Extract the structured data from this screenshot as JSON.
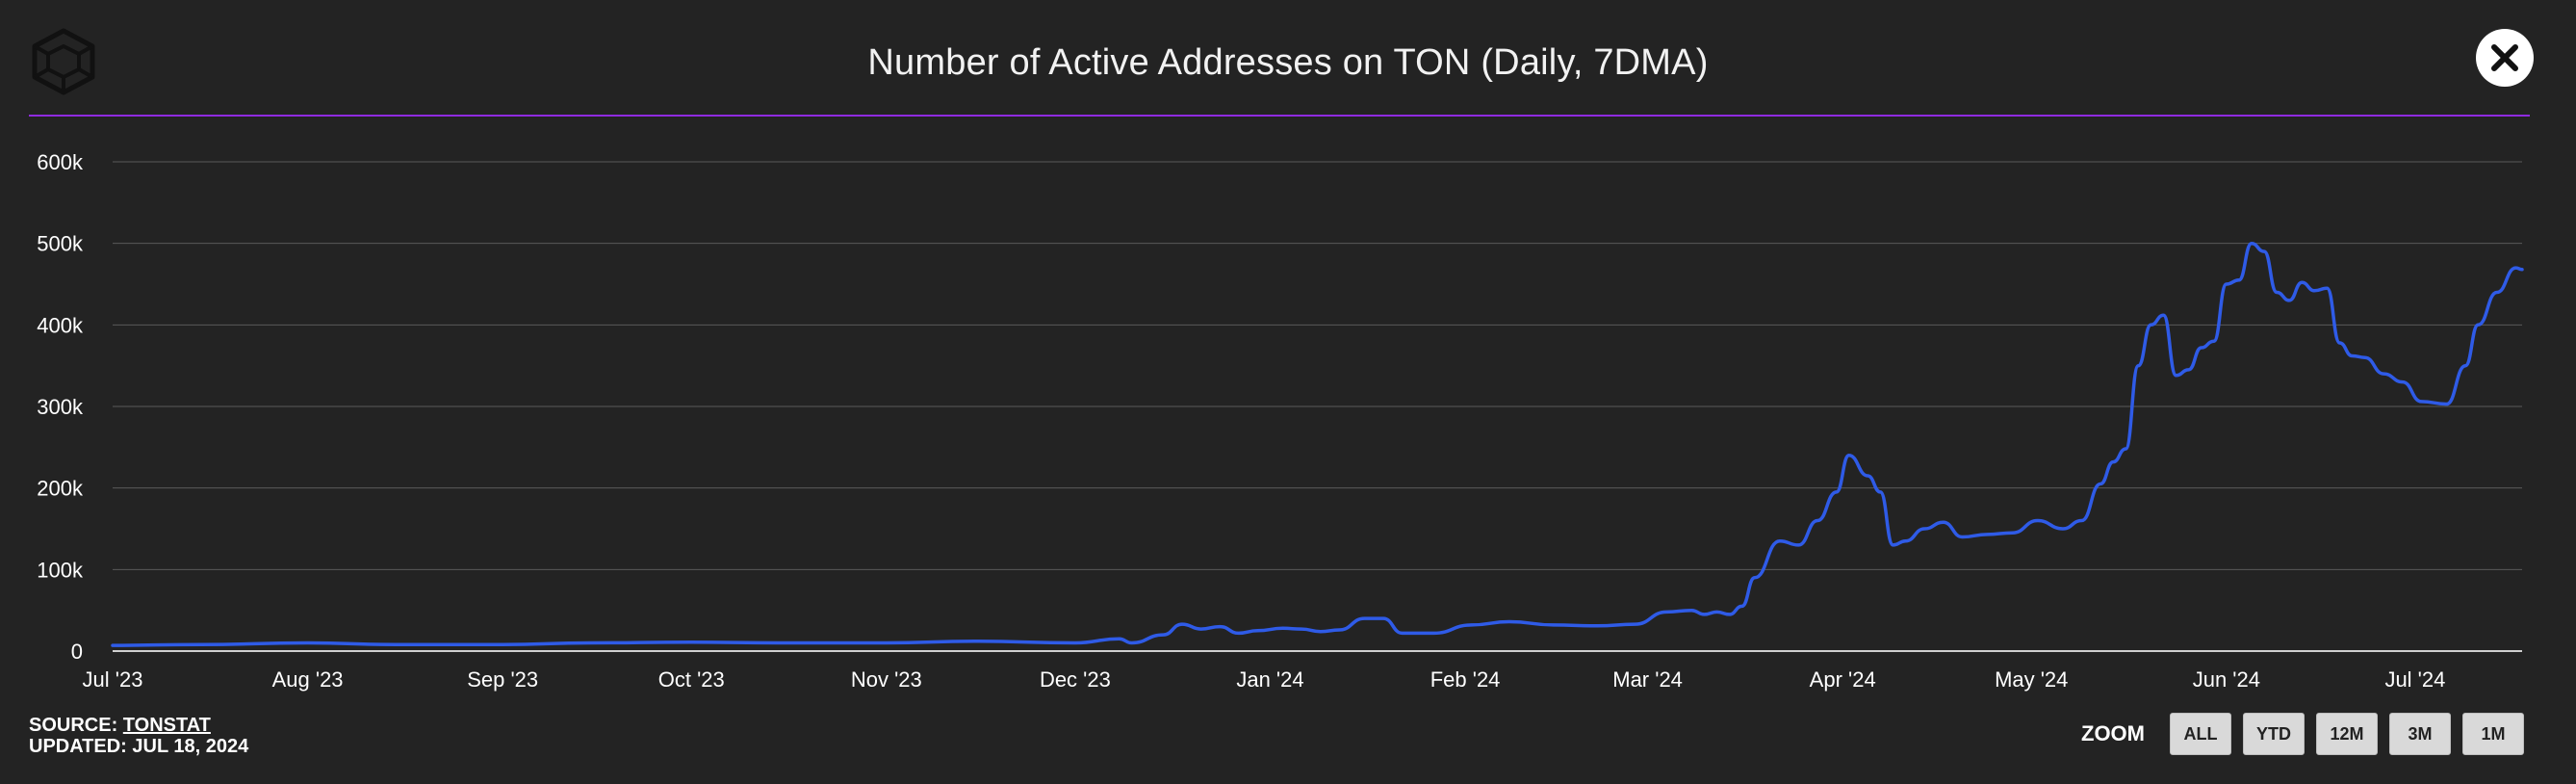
{
  "header": {
    "title": "Number of Active Addresses on TON (Daily, 7DMA)",
    "logo_icon": "cube-logo-icon",
    "close_icon": "close-icon"
  },
  "colors": {
    "background": "#232323",
    "accent_rule": "#8f2be0",
    "line": "#2f5be7",
    "grid": "#5a5a5a"
  },
  "chart_data": {
    "type": "line",
    "title": "Number of Active Addresses on TON (Daily, 7DMA)",
    "xlabel": "",
    "ylabel": "",
    "grid": true,
    "legend": "none",
    "ylim": [
      0,
      600000
    ],
    "xlim": [
      "2023-07-01",
      "2024-07-18"
    ],
    "y_ticks": [
      0,
      100000,
      200000,
      300000,
      400000,
      500000,
      600000
    ],
    "y_tick_labels": [
      "0",
      "100k",
      "200k",
      "300k",
      "400k",
      "500k",
      "600k"
    ],
    "x_ticks": [
      "2023-07-01",
      "2023-08-01",
      "2023-09-01",
      "2023-10-01",
      "2023-11-01",
      "2023-12-01",
      "2024-01-01",
      "2024-02-01",
      "2024-03-01",
      "2024-04-01",
      "2024-05-01",
      "2024-06-01",
      "2024-07-01"
    ],
    "x_tick_labels": [
      "Jul '23",
      "Aug '23",
      "Sep '23",
      "Oct '23",
      "Nov '23",
      "Dec '23",
      "Jan '24",
      "Feb '24",
      "Mar '24",
      "Apr '24",
      "May '24",
      "Jun '24",
      "Jul '24"
    ],
    "series": [
      {
        "x": [
          "2023-07-01",
          "2023-07-15",
          "2023-08-01",
          "2023-08-15",
          "2023-09-01",
          "2023-09-15",
          "2023-10-01",
          "2023-10-15",
          "2023-11-01",
          "2023-11-15",
          "2023-12-01",
          "2023-12-08",
          "2023-12-10",
          "2023-12-15",
          "2023-12-18",
          "2023-12-21",
          "2023-12-24",
          "2023-12-27",
          "2023-12-30",
          "2024-01-03",
          "2024-01-06",
          "2024-01-09",
          "2024-01-12",
          "2024-01-16",
          "2024-01-19",
          "2024-01-22",
          "2024-01-27",
          "2024-02-02",
          "2024-02-08",
          "2024-02-15",
          "2024-02-22",
          "2024-02-28",
          "2024-03-04",
          "2024-03-08",
          "2024-03-10",
          "2024-03-12",
          "2024-03-14",
          "2024-03-16",
          "2024-03-18",
          "2024-03-22",
          "2024-03-25",
          "2024-03-28",
          "2024-03-31",
          "2024-04-02",
          "2024-04-05",
          "2024-04-07",
          "2024-04-09",
          "2024-04-11",
          "2024-04-14",
          "2024-04-17",
          "2024-04-20",
          "2024-04-24",
          "2024-04-28",
          "2024-05-02",
          "2024-05-06",
          "2024-05-09",
          "2024-05-12",
          "2024-05-14",
          "2024-05-16",
          "2024-05-18",
          "2024-05-20",
          "2024-05-22",
          "2024-05-24",
          "2024-05-26",
          "2024-05-28",
          "2024-05-30",
          "2024-06-01",
          "2024-06-03",
          "2024-06-05",
          "2024-06-07",
          "2024-06-09",
          "2024-06-11",
          "2024-06-13",
          "2024-06-15",
          "2024-06-17",
          "2024-06-19",
          "2024-06-21",
          "2024-06-23",
          "2024-06-26",
          "2024-06-29",
          "2024-07-02",
          "2024-07-06",
          "2024-07-09",
          "2024-07-11",
          "2024-07-14",
          "2024-07-17",
          "2024-07-18"
        ],
        "values": [
          7000,
          8000,
          10000,
          8000,
          8000,
          10000,
          11000,
          10000,
          10000,
          12000,
          10000,
          15000,
          10000,
          20000,
          33000,
          27000,
          30000,
          22000,
          25000,
          28000,
          27000,
          24000,
          26000,
          40000,
          40000,
          22000,
          22000,
          32000,
          36000,
          32000,
          31000,
          33000,
          48000,
          50000,
          45000,
          48000,
          45000,
          55000,
          90000,
          135000,
          130000,
          160000,
          195000,
          240000,
          215000,
          195000,
          130000,
          135000,
          150000,
          158000,
          140000,
          143000,
          145000,
          160000,
          150000,
          160000,
          205000,
          232000,
          248000,
          350000,
          400000,
          412000,
          338000,
          345000,
          372000,
          380000,
          450000,
          455000,
          500000,
          490000,
          440000,
          430000,
          452000,
          442000,
          445000,
          378000,
          362000,
          360000,
          340000,
          330000,
          306000,
          303000,
          350000,
          400000,
          440000,
          470000,
          468000
        ]
      }
    ]
  },
  "footer": {
    "source_label": "SOURCE:",
    "source_link": "TONSTAT",
    "updated_label": "UPDATED: JUL 18, 2024"
  },
  "zoom": {
    "label": "ZOOM",
    "options": [
      "ALL",
      "YTD",
      "12M",
      "3M",
      "1M"
    ]
  }
}
